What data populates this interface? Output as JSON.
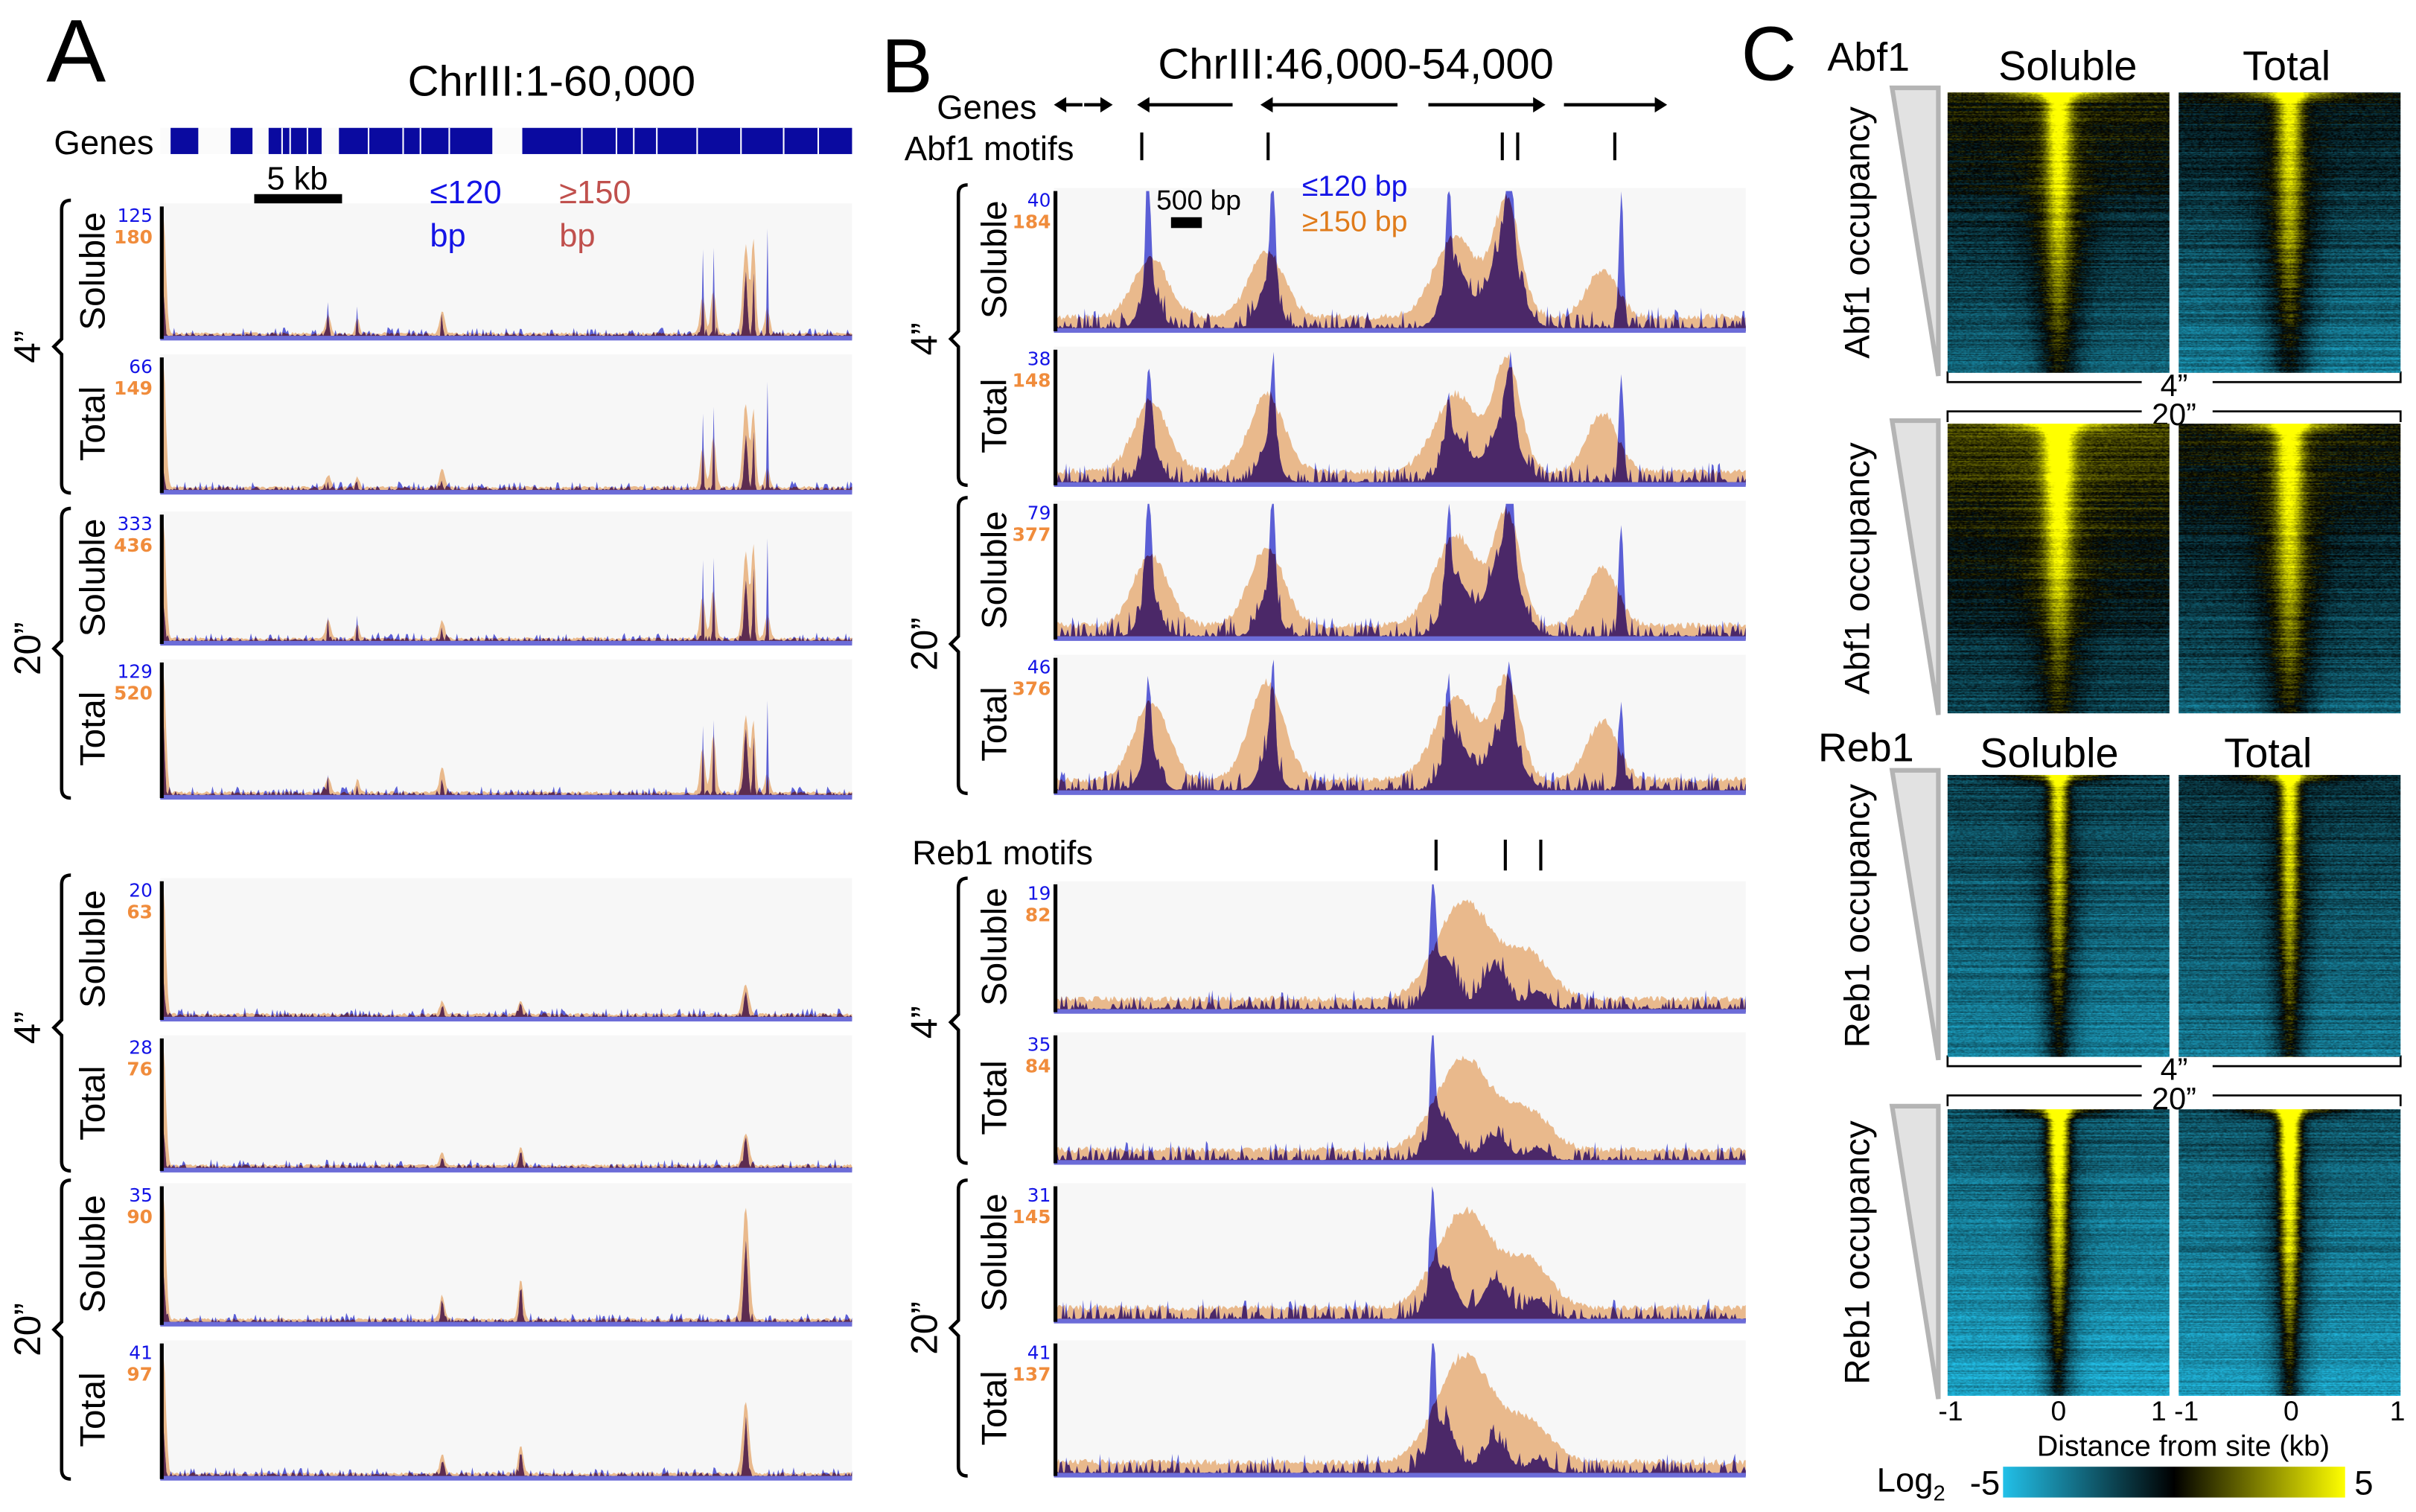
{
  "panel_a": {
    "letter": "A",
    "title": "ChrIII:1-60,000",
    "genes_label": "Genes",
    "scale_bar_label": "5 kb",
    "legend_short": [
      "≤120",
      "bp"
    ],
    "legend_long": [
      "≥150",
      "bp"
    ],
    "legend_colors": {
      "short": "#1414e6",
      "long": "#c0504d"
    }
  },
  "panel_b": {
    "letter": "B",
    "title": "ChrIII:46,000-54,000",
    "genes_label": "Genes",
    "abf1_motifs_label": "Abf1 motifs",
    "reb1_motifs_label": "Reb1 motifs",
    "scale_bar_label": "500 bp",
    "legend_short": "≤120 bp",
    "legend_long": "≥150 bp",
    "legend_colors": {
      "short": "#1414e6",
      "long": "#e07b1a"
    }
  },
  "panel_c": {
    "letter": "C",
    "blocks": [
      {
        "protein": "Abf1",
        "columns": [
          "Soluble",
          "Total"
        ],
        "ylabel": "Abf1 occupancy",
        "times": [
          "4”",
          "20”"
        ]
      },
      {
        "protein": "Reb1",
        "columns": [
          "Soluble",
          "Total"
        ],
        "ylabel": "Reb1 occupancy",
        "times": [
          "4”",
          "20”"
        ]
      }
    ],
    "xticks": [
      "-1",
      "0",
      "1",
      "-1",
      "0",
      "1"
    ],
    "xlabel": "Distance from site (kb)",
    "colorbar": {
      "label": "Log",
      "subscript": "2",
      "min": "-5",
      "max": "5",
      "colors": [
        "#22c0e8",
        "#000000",
        "#ffff00"
      ]
    }
  },
  "chart_data": [
    {
      "type": "area",
      "panel": "A",
      "xlim": [
        1,
        60000
      ],
      "series": [
        {
          "name": "≤120 bp",
          "color": "#5b5fd6"
        },
        {
          "name": "≥150 bp",
          "color": "#e9b98c"
        }
      ],
      "overlap_color": "#5d2c50",
      "genes": {
        "blocks": [
          [
            900,
            3300
          ],
          [
            6100,
            8000
          ],
          [
            9400,
            14000
          ],
          [
            15500,
            28800
          ],
          [
            31400,
            60000
          ]
        ],
        "gaps": [
          10500,
          11200,
          12700,
          18000,
          21000,
          22500,
          25000,
          36500,
          39500,
          41000,
          43000,
          46500,
          50300,
          54000,
          57000
        ]
      },
      "blocks": [
        {
          "short_peaks": {
            "pos": [
              270,
              14565,
              17105,
              24455,
              47037,
              47973,
              50780,
              51450,
              52650
            ],
            "width": [
              150,
              60,
              60,
              60,
              60,
              60,
              200,
              100,
              60
            ]
          },
          "long_peaks": {
            "pos": [
              270,
              14565,
              17105,
              24455,
              47037,
              47973,
              50780,
              51450,
              52650
            ],
            "width": [
              300,
              300,
              250,
              300,
              300,
              300,
              350,
              250,
              300
            ]
          },
          "groups": [
            {
              "time": "4”",
              "tracks": [
                {
                  "label": "Soluble",
                  "short_max": "125",
                  "long_max": "180",
                  "short": [
                    0.35,
                    0.3,
                    0.35,
                    0.3,
                    0.85,
                    0.85,
                    0.45,
                    0.5,
                    0.92
                  ],
                  "long": [
                    0.95,
                    0.15,
                    0.12,
                    0.18,
                    0.3,
                    0.35,
                    0.7,
                    0.75,
                    0.2
                  ]
                },
                {
                  "label": "Total",
                  "short_max": "66",
                  "long_max": "149",
                  "short": [
                    0.15,
                    0.08,
                    0.1,
                    0.15,
                    0.75,
                    0.72,
                    0.4,
                    0.45,
                    0.85
                  ],
                  "long": [
                    0.95,
                    0.1,
                    0.08,
                    0.15,
                    0.3,
                    0.4,
                    0.65,
                    0.6,
                    0.15
                  ]
                }
              ]
            },
            {
              "time": "20”",
              "tracks": [
                {
                  "label": "Soluble",
                  "short_max": "333",
                  "long_max": "436",
                  "short": [
                    0.3,
                    0.25,
                    0.3,
                    0.2,
                    0.85,
                    0.85,
                    0.5,
                    0.55,
                    0.92
                  ],
                  "long": [
                    0.95,
                    0.15,
                    0.12,
                    0.15,
                    0.35,
                    0.4,
                    0.7,
                    0.75,
                    0.2
                  ]
                },
                {
                  "label": "Total",
                  "short_max": "129",
                  "long_max": "520",
                  "short": [
                    0.6,
                    0.15,
                    0.1,
                    0.2,
                    0.7,
                    0.7,
                    0.5,
                    0.45,
                    0.8
                  ],
                  "long": [
                    0.95,
                    0.12,
                    0.1,
                    0.2,
                    0.35,
                    0.45,
                    0.6,
                    0.55,
                    0.15
                  ]
                }
              ]
            }
          ]
        },
        {
          "short_peaks": {
            "pos": [
              270,
              24455,
              31270,
              50780
            ],
            "width": [
              150,
              150,
              150,
              200
            ]
          },
          "long_peaks": {
            "pos": [
              270,
              24455,
              31270,
              50780
            ],
            "width": [
              300,
              300,
              300,
              400
            ]
          },
          "groups": [
            {
              "time": "4”",
              "tracks": [
                {
                  "label": "Soluble",
                  "short_max": "20",
                  "long_max": "63",
                  "short": [
                    0.3,
                    0.08,
                    0.1,
                    0.2
                  ],
                  "long": [
                    0.95,
                    0.1,
                    0.1,
                    0.22
                  ]
                },
                {
                  "label": "Total",
                  "short_max": "28",
                  "long_max": "76",
                  "short": [
                    0.3,
                    0.08,
                    0.15,
                    0.25
                  ],
                  "long": [
                    0.95,
                    0.1,
                    0.15,
                    0.25
                  ]
                }
              ]
            },
            {
              "time": "20”",
              "tracks": [
                {
                  "label": "Soluble",
                  "short_max": "35",
                  "long_max": "90",
                  "short": [
                    0.4,
                    0.15,
                    0.3,
                    0.6
                  ],
                  "long": [
                    0.95,
                    0.18,
                    0.3,
                    0.85
                  ]
                },
                {
                  "label": "Total",
                  "short_max": "41",
                  "long_max": "97",
                  "short": [
                    0.4,
                    0.12,
                    0.2,
                    0.4
                  ],
                  "long": [
                    0.95,
                    0.15,
                    0.22,
                    0.55
                  ]
                }
              ]
            }
          ]
        }
      ]
    },
    {
      "type": "area",
      "panel": "B",
      "xlim": [
        46000,
        54000
      ],
      "series": [
        {
          "name": "≤120 bp",
          "color": "#5b5fd6"
        },
        {
          "name": "≥150 bp",
          "color": "#e9b98c"
        }
      ],
      "overlap_color": "#4b2868",
      "genes": [
        {
          "start": 46000,
          "end": 46330,
          "strand": "-"
        },
        {
          "start": 46350,
          "end": 46680,
          "strand": "+"
        },
        {
          "start": 46962,
          "end": 48066,
          "strand": "-"
        },
        {
          "start": 48388,
          "end": 49973,
          "strand": "-"
        },
        {
          "start": 50330,
          "end": 51684,
          "strand": "+"
        },
        {
          "start": 51898,
          "end": 53091,
          "strand": "+"
        }
      ],
      "abf1_motifs": [
        47016,
        48477,
        51185,
        51363,
        52486
      ],
      "reb1_motifs": [
        50419,
        51220,
        51630
      ],
      "blocks": [
        {
          "short_peaks": {
            "pos": [
              47090,
              48530,
              50560,
              51270,
              52560,
              47110,
              48480,
              50650,
              51200
            ],
            "width": [
              40,
              40,
              40,
              60,
              40,
              150,
              150,
              200,
              250
            ]
          },
          "long_peaks": {
            "pos": [
              47120,
              48460,
              50650,
              51240,
              52340
            ],
            "width": [
              280,
              280,
              350,
              220,
              250
            ]
          },
          "groups": [
            {
              "time": "4”",
              "tracks": [
                {
                  "label": "Soluble",
                  "short_max": "40",
                  "long_max": "184",
                  "short": [
                    0.95,
                    0.95,
                    0.7,
                    0.85,
                    0.95,
                    0.3,
                    0.35,
                    0.45,
                    0.6
                  ],
                  "long": [
                    0.45,
                    0.5,
                    0.6,
                    0.85,
                    0.35
                  ]
                },
                {
                  "label": "Total",
                  "short_max": "38",
                  "long_max": "148",
                  "short": [
                    0.6,
                    0.65,
                    0.4,
                    0.5,
                    0.8,
                    0.3,
                    0.3,
                    0.35,
                    0.45
                  ],
                  "long": [
                    0.55,
                    0.6,
                    0.6,
                    0.85,
                    0.45
                  ]
                }
              ]
            },
            {
              "time": "20”",
              "tracks": [
                {
                  "label": "Soluble",
                  "short_max": "79",
                  "long_max": "377",
                  "short": [
                    0.85,
                    0.9,
                    0.6,
                    0.85,
                    0.85,
                    0.35,
                    0.35,
                    0.45,
                    0.65
                  ],
                  "long": [
                    0.55,
                    0.6,
                    0.7,
                    0.85,
                    0.45
                  ]
                },
                {
                  "label": "Total",
                  "short_max": "46",
                  "long_max": "376",
                  "short": [
                    0.6,
                    0.7,
                    0.5,
                    0.55,
                    0.7,
                    0.3,
                    0.3,
                    0.4,
                    0.45
                  ],
                  "long": [
                    0.6,
                    0.75,
                    0.65,
                    0.75,
                    0.45
                  ]
                }
              ]
            }
          ]
        },
        {
          "short_peaks": {
            "pos": [
              50380,
              50500,
              51100,
              51600
            ],
            "width": [
              40,
              200,
              200,
              150
            ]
          },
          "long_peaks": {
            "pos": [
              50750,
              51500
            ],
            "width": [
              450,
              350
            ]
          },
          "groups": [
            {
              "time": "4”",
              "tracks": [
                {
                  "label": "Soluble",
                  "short_max": "19",
                  "long_max": "82",
                  "short": [
                    0.8,
                    0.45,
                    0.35,
                    0.15
                  ],
                  "long": [
                    0.8,
                    0.35
                  ]
                },
                {
                  "label": "Total",
                  "short_max": "35",
                  "long_max": "84",
                  "short": [
                    0.85,
                    0.35,
                    0.2,
                    0.1
                  ],
                  "long": [
                    0.75,
                    0.3
                  ]
                }
              ]
            },
            {
              "time": "20”",
              "tracks": [
                {
                  "label": "Soluble",
                  "short_max": "31",
                  "long_max": "145",
                  "short": [
                    0.75,
                    0.4,
                    0.3,
                    0.15
                  ],
                  "long": [
                    0.75,
                    0.35
                  ]
                },
                {
                  "label": "Total",
                  "short_max": "41",
                  "long_max": "137",
                  "short": [
                    0.9,
                    0.4,
                    0.25,
                    0.1
                  ],
                  "long": [
                    0.85,
                    0.3
                  ]
                }
              ]
            }
          ]
        }
      ]
    },
    {
      "type": "heatmap",
      "panel": "C",
      "xlim": [
        -1,
        1
      ],
      "xlabel": "Distance from site (kb)",
      "color_range": [
        -5,
        5
      ],
      "rows_sorted_by": [
        "Abf1 occupancy",
        "Reb1 occupancy"
      ]
    }
  ]
}
